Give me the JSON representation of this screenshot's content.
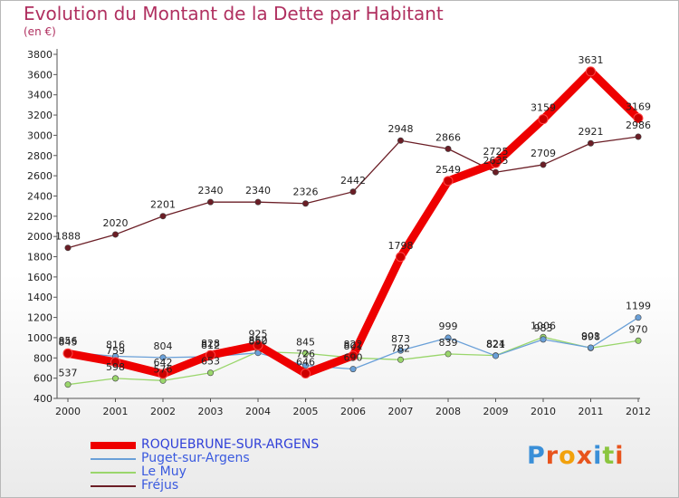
{
  "title": "Evolution du Montant de la Dette par Habitant",
  "subtitle": "(en €)",
  "logo": {
    "text": "Proxiti",
    "colors": [
      "#3a8fd8",
      "#e8541d",
      "#f2a10c",
      "#e8541d",
      "#3a8fd8",
      "#8bc53f",
      "#e8541d"
    ]
  },
  "chart_data": {
    "type": "line",
    "title": "Evolution du Montant de la Dette par Habitant",
    "unit": "(en €)",
    "x": [
      2000,
      2001,
      2002,
      2003,
      2004,
      2005,
      2006,
      2007,
      2008,
      2009,
      2010,
      2011,
      2012
    ],
    "ylim": [
      400,
      3800
    ],
    "yticks": [
      400,
      600,
      800,
      1000,
      1200,
      1400,
      1600,
      1800,
      2000,
      2200,
      2400,
      2600,
      2800,
      3000,
      3200,
      3400,
      3600,
      3800
    ],
    "grid": false,
    "legend": "bottom-left",
    "series": [
      {
        "name": "ROQUEBRUNE-SUR-ARGENS",
        "color": "#ee0000",
        "values": [
          845,
          759,
          642,
          828,
          925,
          646,
          822,
          1798,
          2549,
          2725,
          3159,
          3631,
          3169
        ]
      },
      {
        "name": "Puget-sur-Argens",
        "color": "#6aa0d8",
        "values": [
          856,
          816,
          804,
          812,
          850,
          726,
          690,
          873,
          999,
          821,
          983,
          901,
          1199
        ]
      },
      {
        "name": "Le Muy",
        "color": "#9ad66c",
        "values": [
          537,
          598,
          576,
          653,
          862,
          845,
          801,
          782,
          839,
          824,
          1006,
          898,
          970
        ]
      },
      {
        "name": "Fréjus",
        "color": "#6b1e26",
        "values": [
          1888,
          2020,
          2201,
          2340,
          2340,
          2326,
          2442,
          2948,
          2866,
          2635,
          2709,
          2921,
          2986
        ]
      }
    ]
  }
}
